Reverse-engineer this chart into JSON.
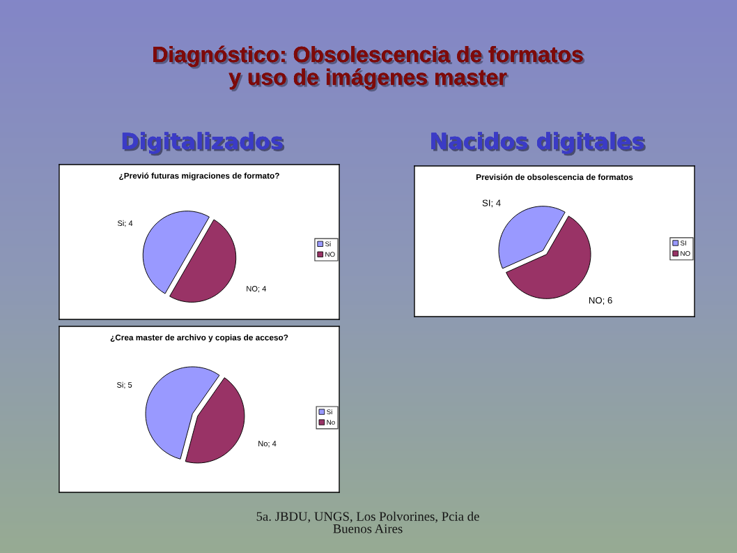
{
  "chart_data": [
    {
      "type": "pie",
      "title": "¿Previó futuras migraciones de formato?",
      "categories": [
        "Si",
        "NO"
      ],
      "values": [
        4,
        4
      ],
      "colors": [
        "#9999ff",
        "#993366"
      ],
      "value_labels": [
        "Si; 4",
        "NO; 4"
      ],
      "legend": "right",
      "annotations": [
        "Diagnóstico: Obsolescencia de formatos y uso de imágenes master",
        "Digitalizados",
        "5a. JBDU, UNGS, Los Polvorines, Pcia de Buenos Aires"
      ]
    },
    {
      "type": "pie",
      "title": "Previsión de obsolescencia de formatos",
      "categories": [
        "SI",
        "NO"
      ],
      "values": [
        4,
        6
      ],
      "colors": [
        "#9999ff",
        "#993366"
      ],
      "value_labels": [
        "SI; 4",
        "NO; 6"
      ],
      "legend": "right",
      "annotations": [
        "Nacidos digitales"
      ]
    },
    {
      "type": "pie",
      "title": "¿Crea master de archivo y copias de acceso?",
      "categories": [
        "Si",
        "No"
      ],
      "values": [
        5,
        4
      ],
      "colors": [
        "#9999ff",
        "#993366"
      ],
      "value_labels": [
        "Si; 5",
        "No; 4"
      ],
      "legend": "right"
    }
  ]
}
